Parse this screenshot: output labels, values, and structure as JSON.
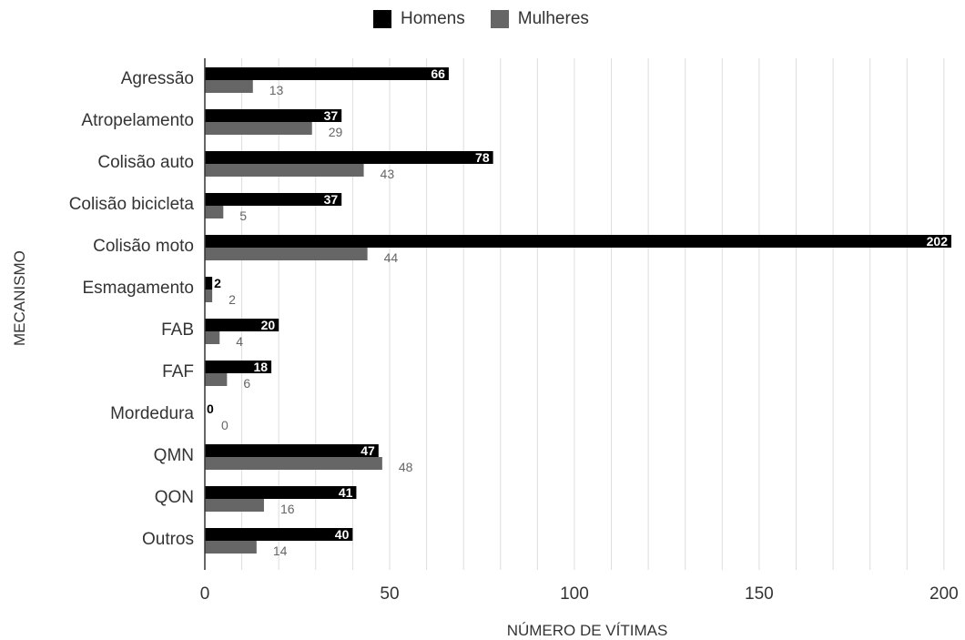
{
  "chart_data": {
    "type": "bar",
    "orientation": "horizontal",
    "categories": [
      "Agressão",
      "Atropelamento",
      "Colisão auto",
      "Colisão bicicleta",
      "Colisão moto",
      "Esmagamento",
      "FAB",
      "FAF",
      "Mordedura",
      "QMN",
      "QON",
      "Outros"
    ],
    "series": [
      {
        "name": "Homens",
        "color": "#000000",
        "values": [
          66,
          37,
          78,
          37,
          202,
          2,
          20,
          18,
          0,
          47,
          41,
          40
        ]
      },
      {
        "name": "Mulheres",
        "color": "#666666",
        "values": [
          13,
          29,
          43,
          5,
          44,
          2,
          4,
          6,
          0,
          48,
          16,
          14
        ]
      }
    ],
    "xlabel": "NÚMERO DE VÍTIMAS",
    "ylabel": "MECANISMO",
    "xlim": [
      0,
      202
    ],
    "xticks": [
      0,
      50,
      100,
      150,
      200
    ],
    "grid": true,
    "legend_position": "top"
  }
}
